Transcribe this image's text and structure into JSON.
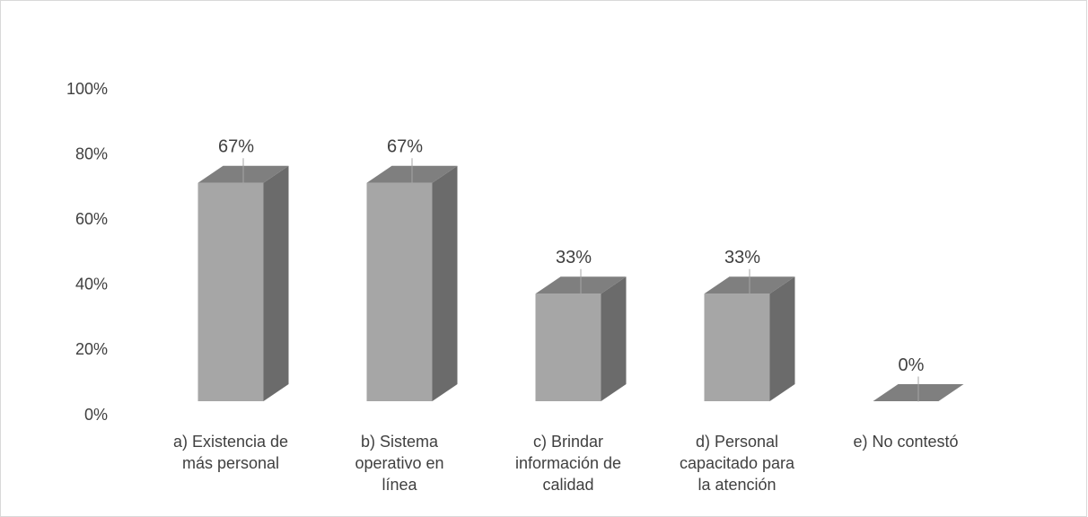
{
  "chart_data": {
    "type": "bar3d",
    "categories": [
      "a) Existencia de más personal",
      "b) Sistema operativo en línea",
      "c) Brindar información de calidad",
      "d) Personal capacitado para la atención",
      "e) No contestó"
    ],
    "values": [
      67,
      67,
      33,
      33,
      0
    ],
    "value_labels": [
      "67%",
      "67%",
      "33%",
      "33%",
      "0%"
    ],
    "color": "#a6a6a6",
    "ylim": [
      0,
      100
    ],
    "yticks": [
      {
        "value": 0,
        "label": "0%"
      },
      {
        "value": 20,
        "label": "20%"
      },
      {
        "value": 40,
        "label": "40%"
      },
      {
        "value": 60,
        "label": "60%"
      },
      {
        "value": 80,
        "label": "80%"
      },
      {
        "value": 100,
        "label": "100%"
      }
    ],
    "grid": false
  }
}
